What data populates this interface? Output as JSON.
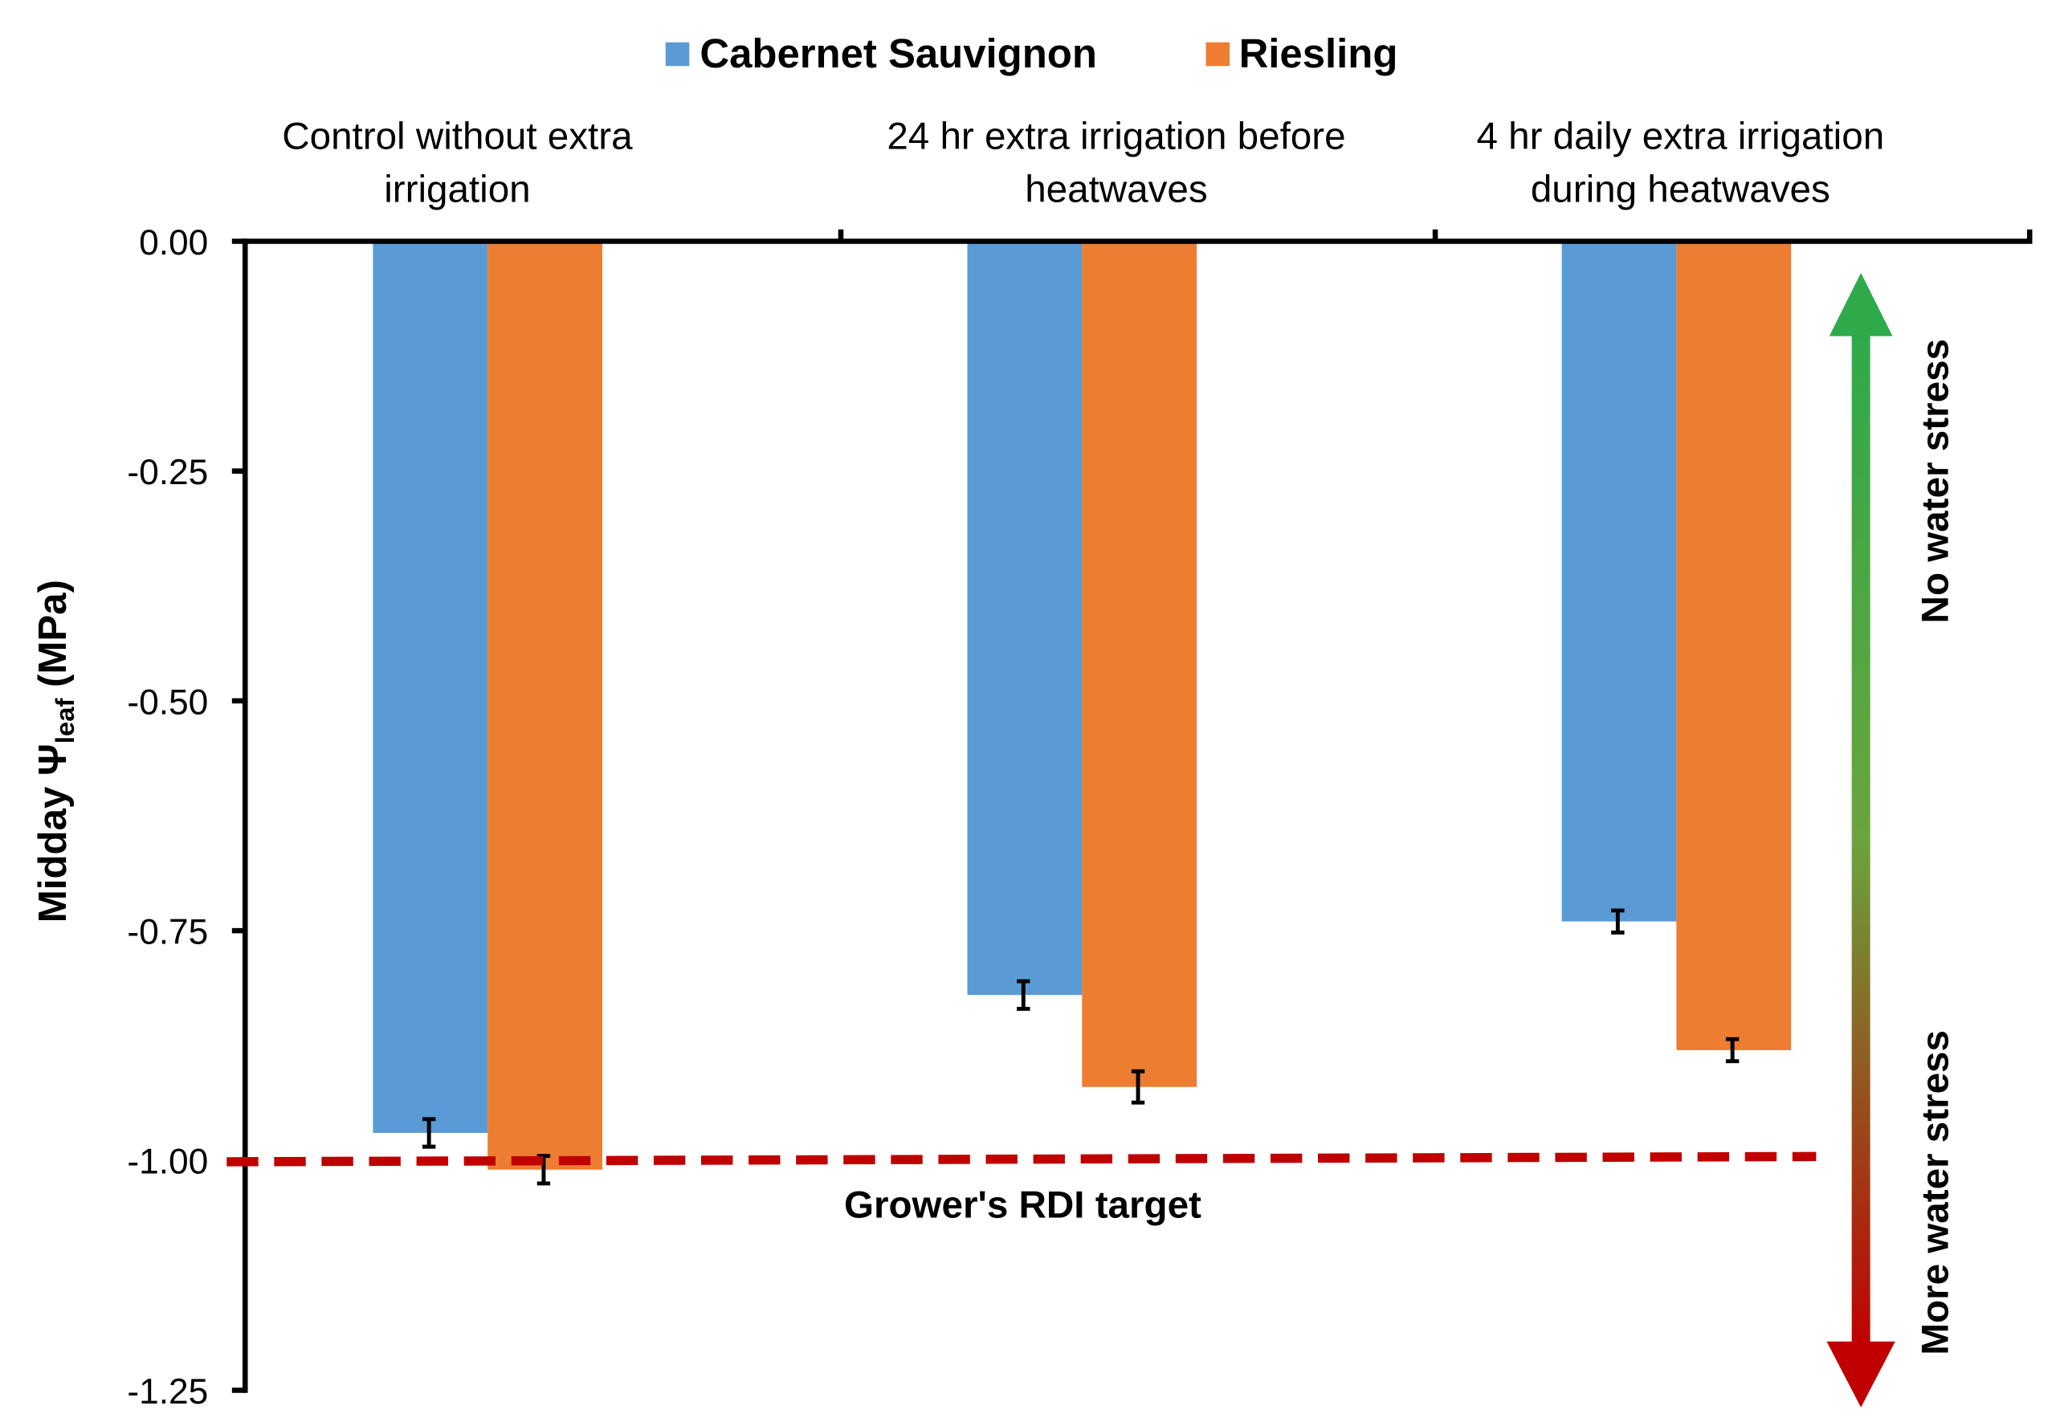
{
  "chart_data": {
    "type": "bar",
    "title": "",
    "ylabel_main": "Midday Ψ",
    "ylabel_sub": "leaf",
    "ylabel_unit": " (MPa)",
    "xlabel": "",
    "ylim": [
      -1.25,
      0
    ],
    "yticks": [
      0,
      -0.25,
      -0.5,
      -0.75,
      -1.0,
      -1.25
    ],
    "ytick_labels": [
      "0.00",
      "-0.25",
      "-0.50",
      "-0.75",
      "-1.00",
      "-1.25"
    ],
    "categories": [
      [
        "Control without extra",
        "irrigation"
      ],
      [
        "24 hr extra irrigation before",
        "heatwaves"
      ],
      [
        "4 hr daily extra irrigation",
        "during heatwaves"
      ]
    ],
    "legend_position": "top-center",
    "series": [
      {
        "name": "Cabernet Sauvignon",
        "color": "#5b9bd5",
        "values": [
          -0.97,
          -0.82,
          -0.74
        ],
        "errors": [
          0.015,
          0.015,
          0.012
        ]
      },
      {
        "name": "Riesling",
        "color": "#ed7d31",
        "values": [
          -1.01,
          -0.92,
          -0.88
        ],
        "errors": [
          0.015,
          0.017,
          0.012
        ]
      }
    ],
    "reference_line": {
      "value": -1.0,
      "label": "Grower's RDI target",
      "color": "#c00000",
      "style": "dashed"
    },
    "annotations": {
      "top": "No water stress",
      "bottom": "More water stress",
      "arrow_top_color": "#2eaa4a",
      "arrow_bottom_color": "#c00000"
    }
  }
}
